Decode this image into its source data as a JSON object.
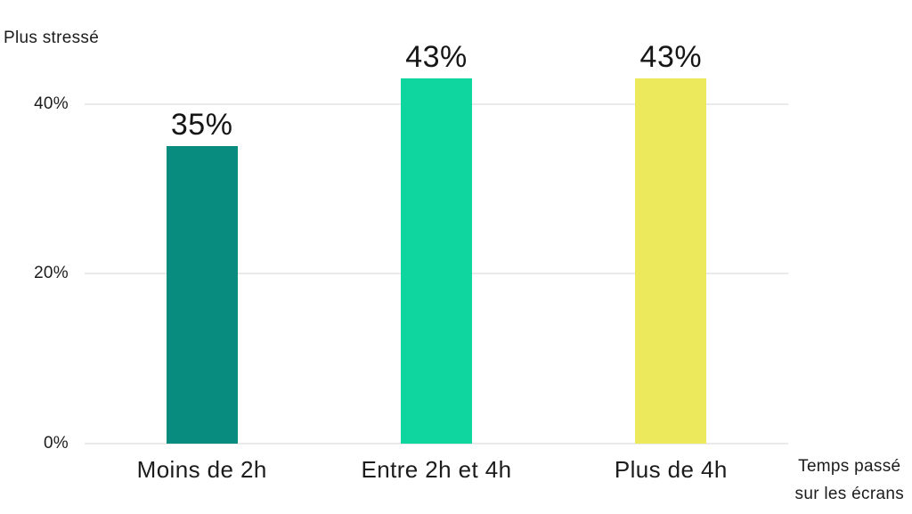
{
  "chart_data": {
    "type": "bar",
    "title": "",
    "ylabel": "Plus stressé",
    "xlabel": "Temps passé sur les écrans",
    "xlabel_lines": [
      "Temps passé",
      "sur les écrans"
    ],
    "categories": [
      "Moins de 2h",
      "Entre 2h et 4h",
      "Plus de 4h"
    ],
    "values": [
      35,
      43,
      43
    ],
    "value_labels": [
      "35%",
      "43%",
      "43%"
    ],
    "bar_colors": [
      "#098c80",
      "#0ed69e",
      "#ece95c"
    ],
    "ylim": [
      0,
      45
    ],
    "yticks": [
      {
        "value": 0,
        "label": "0%"
      },
      {
        "value": 20,
        "label": "20%"
      },
      {
        "value": 40,
        "label": "40%"
      }
    ],
    "grid": true,
    "legend": "none",
    "colors": {
      "background": "#ffffff",
      "gridline": "#eaeaea",
      "text": "#1c1c1c"
    }
  }
}
